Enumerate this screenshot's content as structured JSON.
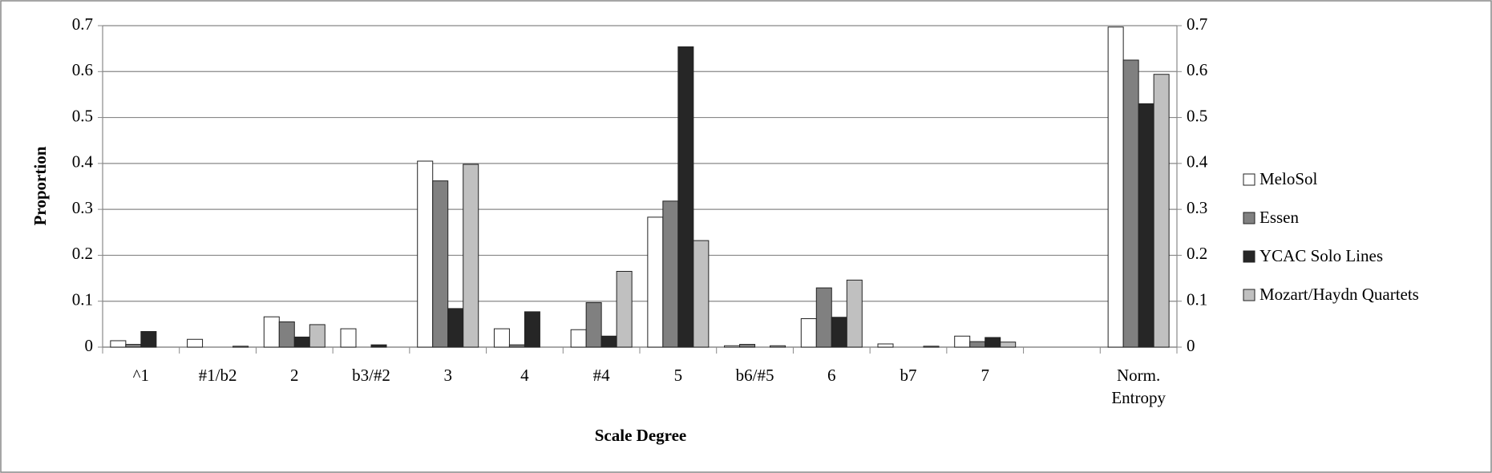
{
  "chart_data": {
    "type": "bar",
    "x_label": "Scale Degree",
    "y_label": "Proportion",
    "categories": [
      "^1",
      "#1/b2",
      "2",
      "b3/#2",
      "3",
      "4",
      "#4",
      "5",
      "b6/#5",
      "6",
      "b7",
      "7",
      null,
      "Norm. Entropy"
    ],
    "series": [
      {
        "name": "MeloSol",
        "color": "#ffffff",
        "values": [
          0.014,
          0.017,
          0.066,
          0.04,
          0.405,
          0.04,
          0.038,
          0.283,
          0.003,
          0.062,
          0.007,
          0.024,
          null,
          0.697
        ]
      },
      {
        "name": "Essen",
        "color": "#808080",
        "values": [
          0.006,
          0,
          0.055,
          0,
          0.362,
          0.005,
          0.097,
          0.318,
          0.006,
          0.129,
          0,
          0.012,
          null,
          0.625
        ]
      },
      {
        "name": "YCAC Solo Lines",
        "color": "#262626",
        "values": [
          0.034,
          0,
          0.022,
          0.005,
          0.084,
          0.077,
          0.024,
          0.654,
          0,
          0.065,
          0,
          0.021,
          null,
          0.53
        ]
      },
      {
        "name": "Mozart/Haydn Quartets",
        "color": "#c0c0c0",
        "values": [
          0,
          0.002,
          0.049,
          0,
          0.398,
          0,
          0.165,
          0.232,
          0.003,
          0.146,
          0.002,
          0.011,
          null,
          0.594
        ]
      }
    ],
    "ylim": [
      0,
      0.7
    ],
    "yticks": [
      0,
      0.1,
      0.2,
      0.3,
      0.4,
      0.5,
      0.6,
      0.7
    ],
    "y2lim": [
      0,
      0.7
    ],
    "y2ticks": [
      0,
      0.1,
      0.2,
      0.3,
      0.4,
      0.5,
      0.6,
      0.7
    ],
    "grid": true,
    "legend": "right"
  }
}
